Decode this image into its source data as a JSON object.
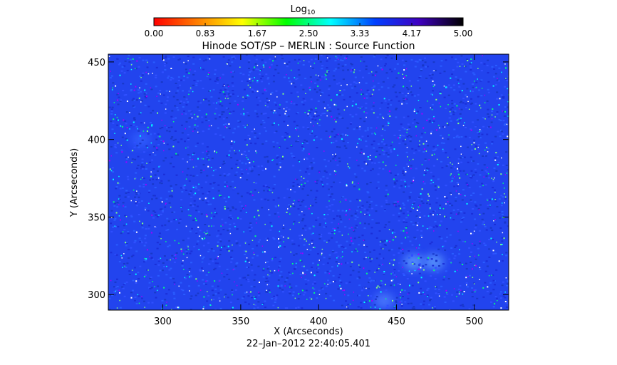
{
  "chart_data": {
    "type": "heatmap",
    "title": "Hinode SOT/SP – MERLIN : Source Function",
    "xlabel": "X (Arcseconds)",
    "ylabel": "Y (Arcseconds)",
    "timestamp": "22–Jan–2012 22:40:05.401",
    "xlim": [
      265,
      522
    ],
    "ylim": [
      290,
      455
    ],
    "x_ticks": [
      300,
      350,
      400,
      450,
      500
    ],
    "y_ticks": [
      300,
      350,
      400,
      450
    ],
    "x_tick_labels": [
      "300",
      "350",
      "400",
      "450",
      "500"
    ],
    "y_tick_labels": [
      "300",
      "350",
      "400",
      "450"
    ],
    "colorbar": {
      "label": "Log",
      "label_subscript": "10",
      "range": [
        0,
        5
      ],
      "tick_labels": [
        "0.00",
        "0.83",
        "1.67",
        "2.50",
        "3.33",
        "4.17",
        "5.00"
      ],
      "tick_values": [
        0.0,
        0.83,
        1.67,
        2.5,
        3.33,
        4.17,
        5.0
      ],
      "colors": [
        "#ff0000",
        "#ff8000",
        "#ffff00",
        "#00ff00",
        "#00ffff",
        "#0040ff",
        "#4000c0",
        "#000000"
      ]
    },
    "field": {
      "background_value": 4.1,
      "background_color": "#2244ee",
      "speckle_colors": [
        "#ffffff",
        "#00ffff",
        "#00ff80",
        "#80ff80",
        "#a000ff"
      ],
      "features": [
        {
          "name": "bright-region-1",
          "x": 461,
          "y": 321,
          "color": "#60a0ff"
        },
        {
          "name": "bright-region-2",
          "x": 474,
          "y": 321,
          "color": "#60a0ff"
        },
        {
          "name": "faint-patch",
          "x": 442,
          "y": 296,
          "color": "#5080ff"
        },
        {
          "name": "faint-patch-2",
          "x": 286,
          "y": 400,
          "color": "#3060ff"
        }
      ]
    }
  }
}
